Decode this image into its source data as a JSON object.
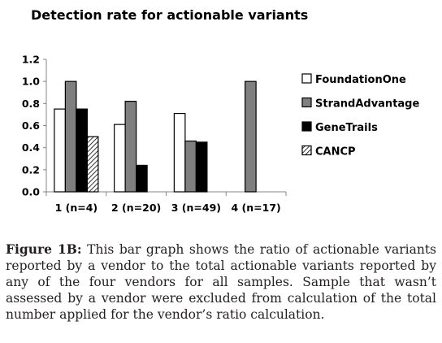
{
  "chart_data": {
    "type": "bar",
    "title": "Detection rate for actionable variants",
    "categories": [
      "1 (n=4)",
      "2 (n=20)",
      "3 (n=49)",
      "4 (n=17)"
    ],
    "series": [
      {
        "name": "FoundationOne",
        "values": [
          0.75,
          0.61,
          0.71,
          null
        ],
        "color": "#ffffff",
        "pattern": "solid"
      },
      {
        "name": "StrandAdvantage",
        "values": [
          1.0,
          0.82,
          0.46,
          1.0
        ],
        "color": "#7f7f7f",
        "pattern": "solid"
      },
      {
        "name": "GeneTrails",
        "values": [
          0.75,
          0.24,
          0.45,
          null
        ],
        "color": "#000000",
        "pattern": "solid"
      },
      {
        "name": "CANCP",
        "values": [
          0.5,
          null,
          null,
          null
        ],
        "color": "#ffffff",
        "pattern": "diagonal-hatch"
      }
    ],
    "ylim": [
      0,
      1.2
    ],
    "yticks": [
      "0.0",
      "0.2",
      "0.4",
      "0.6",
      "0.8",
      "1.0",
      "1.2"
    ],
    "grid": false,
    "legend": "right"
  },
  "caption": {
    "label": "Figure 1B:",
    "text": "This bar graph shows the ratio of actionable variants reported by a vendor to the total actionable variants reported by any of the four vendors for all samples. Sample that wasn’t assessed by a vendor were excluded from calculation of the total number applied for the vendor’s ratio calculation."
  }
}
